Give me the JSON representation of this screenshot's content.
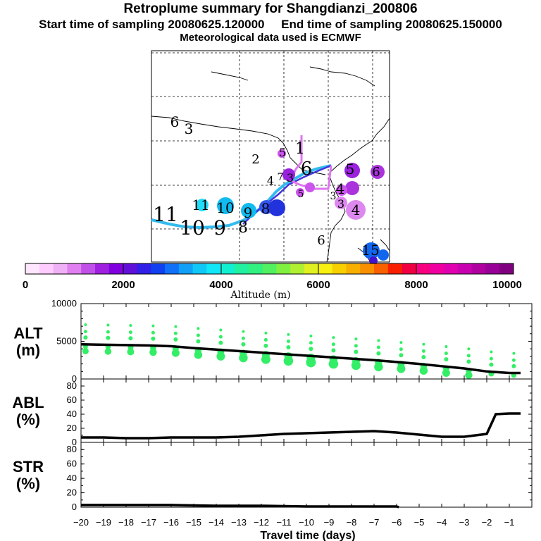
{
  "titles": {
    "title": "Retroplume summary for Shangdianzi_200806",
    "start_label": "Start time of sampling 20080625.120000",
    "end_label": "End time of sampling 20080625.150000",
    "met_label": "Meteorological data used is ECMWF"
  },
  "colorbar": {
    "colors": [
      "#ffe6ff",
      "#ffccff",
      "#f0b0f5",
      "#e080f0",
      "#c050e8",
      "#a020e0",
      "#8000e0",
      "#6010d8",
      "#3020e8",
      "#1040f0",
      "#1070f8",
      "#10a0f8",
      "#10c8f8",
      "#10e8f8",
      "#10f0d0",
      "#20f0a0",
      "#30f080",
      "#50f060",
      "#80f040",
      "#b0f030",
      "#e0f020",
      "#f8f010",
      "#f8d000",
      "#f8b000",
      "#f89000",
      "#f86000",
      "#f82000",
      "#f00040",
      "#f80080",
      "#f000a0",
      "#e000b0",
      "#c800b0",
      "#b000a0",
      "#980098",
      "#800080"
    ],
    "tick_labels": [
      "0",
      "2000",
      "4000",
      "6000",
      "8000",
      "10000"
    ],
    "label": "Altitude (m)"
  },
  "map": {
    "numeral_labels": [
      {
        "t": "6",
        "c": "#000000"
      },
      {
        "t": "3",
        "c": "#000000"
      },
      {
        "t": "5",
        "c": "#000000"
      },
      {
        "t": "1",
        "c": "#000000"
      },
      {
        "t": "2",
        "c": "#000000"
      },
      {
        "t": "4",
        "c": "#000000"
      },
      {
        "t": "6",
        "c": "#000000"
      },
      {
        "t": "7",
        "c": "#000000"
      },
      {
        "t": "5",
        "c": "#000000"
      },
      {
        "t": "6",
        "c": "#000000"
      },
      {
        "t": "3",
        "c": "#000000"
      },
      {
        "t": "5",
        "c": "#000000"
      },
      {
        "t": "4",
        "c": "#000000"
      },
      {
        "t": "3",
        "c": "#000000"
      },
      {
        "t": "4",
        "c": "#000000"
      },
      {
        "t": "3",
        "c": "#000000"
      },
      {
        "t": "11",
        "c": "#000000"
      },
      {
        "t": "10",
        "c": "#000000"
      },
      {
        "t": "9",
        "c": "#000000"
      },
      {
        "t": "8",
        "c": "#000000"
      },
      {
        "t": "11",
        "c": "#000000"
      },
      {
        "t": "10",
        "c": "#000000"
      },
      {
        "t": "9",
        "c": "#000000"
      },
      {
        "t": "8",
        "c": "#000000"
      },
      {
        "t": "6",
        "c": "#000000"
      },
      {
        "t": "15",
        "c": "#000000"
      }
    ]
  },
  "chart_data": [
    {
      "type": "line",
      "panel": "ALT",
      "ylabel_top": "ALT",
      "ylabel_bottom": "(m)",
      "ylim": [
        0,
        10000
      ],
      "yticks": [
        "0",
        "5000",
        "10000"
      ],
      "xlim": [
        -20,
        0
      ],
      "line_x": [
        -20,
        -19,
        -18,
        -17,
        -16,
        -15,
        -14,
        -13,
        -12,
        -11,
        -10,
        -9,
        -8,
        -7,
        -6,
        -5,
        -4,
        -3,
        -2,
        -1,
        -0.5
      ],
      "line_y": [
        4600,
        4550,
        4500,
        4450,
        4350,
        4100,
        3900,
        3700,
        3500,
        3300,
        3100,
        2900,
        2700,
        2500,
        2250,
        2000,
        1700,
        1400,
        1000,
        800,
        800
      ],
      "dot_color": "#33ee66"
    },
    {
      "type": "line",
      "panel": "ABL",
      "ylabel_top": "ABL",
      "ylabel_bottom": "(%)",
      "ylim": [
        0,
        90
      ],
      "yticks": [
        "0",
        "20",
        "40",
        "60",
        "80"
      ],
      "xlim": [
        -20,
        0
      ],
      "line_x": [
        -20,
        -19,
        -18,
        -17,
        -16,
        -15,
        -14,
        -13,
        -12,
        -11,
        -10,
        -9,
        -8,
        -7,
        -6,
        -5,
        -4,
        -3,
        -2,
        -1.6,
        -1,
        -0.5
      ],
      "line_y": [
        7,
        7,
        6,
        6,
        7,
        7,
        7,
        8,
        10,
        12,
        13,
        14,
        15,
        16,
        14,
        11,
        8,
        8,
        12,
        40,
        41,
        41
      ]
    },
    {
      "type": "line",
      "panel": "STR",
      "ylabel_top": "STR",
      "ylabel_bottom": "(%)",
      "ylim": [
        0,
        90
      ],
      "yticks": [
        "0",
        "20",
        "40",
        "60",
        "80"
      ],
      "xlim": [
        -20,
        0
      ],
      "line_x": [
        -20,
        -18,
        -16,
        -14,
        -12,
        -10,
        -8,
        -6,
        -5.9
      ],
      "line_y": [
        3,
        3,
        3,
        2,
        2,
        1,
        1,
        1,
        0
      ]
    }
  ],
  "xaxis": {
    "tick_labels": [
      "−20",
      "−19",
      "−18",
      "−17",
      "−16",
      "−15",
      "−14",
      "−13",
      "−12",
      "−11",
      "−10",
      "−9",
      "−8",
      "−7",
      "−6",
      "−5",
      "−4",
      "−3",
      "−2",
      "−1"
    ],
    "label": "Travel time (days)"
  }
}
